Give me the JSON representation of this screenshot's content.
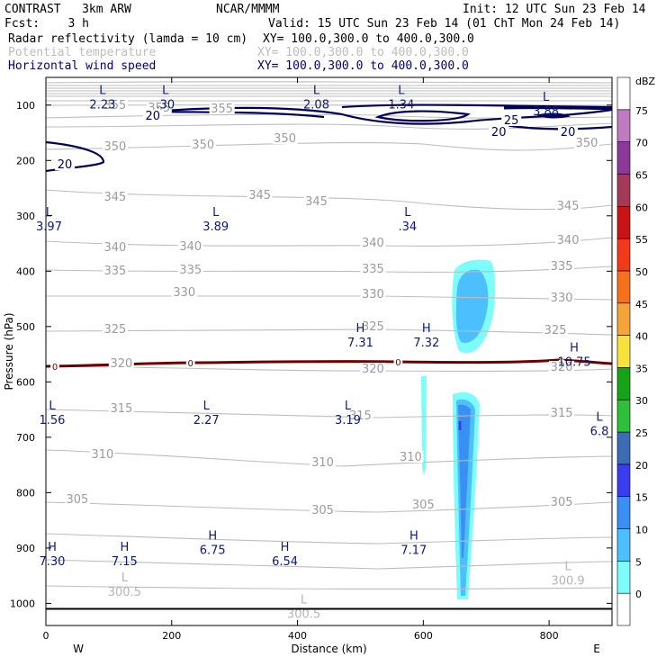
{
  "header": {
    "model": "CONTRAST   3km ARW",
    "center": "NCAR/MMMM",
    "init": "Init: 12 UTC Sun 23 Feb 14",
    "fcst": "Fcst:    3 h",
    "valid": "Valid: 15 UTC Sun 23 Feb 14 (01 ChT Mon 24 Feb 14)",
    "fields": [
      {
        "name": "Radar reflectivity (lamda = 10 cm)",
        "xy": "XY= 100.0,300.0 to 400.0,300.0"
      },
      {
        "name": "Potential temperature",
        "xy": "XY= 100.0,300.0 to 400.0,300.0"
      },
      {
        "name": "Horizontal wind speed",
        "xy": "XY= 100.0,300.0 to 400.0,300.0"
      }
    ]
  },
  "chart_data": {
    "type": "contour cross-section",
    "xlabel": "Distance (km)",
    "ylabel": "Pressure (hPa)",
    "xlim": [
      0,
      900
    ],
    "ylim": [
      1040,
      50
    ],
    "x_ticks": [
      0,
      200,
      400,
      600,
      800
    ],
    "y_ticks": [
      100,
      200,
      300,
      400,
      500,
      600,
      700,
      800,
      900,
      1000
    ],
    "x_end_labels": {
      "left": "W",
      "right": "E"
    },
    "colorbar": {
      "units": "dBZ",
      "levels": [
        0,
        5,
        10,
        15,
        20,
        25,
        30,
        35,
        40,
        45,
        50,
        55,
        60,
        65,
        70,
        75
      ],
      "colors": [
        "#ffffff",
        "#7efcfc",
        "#4cc0ff",
        "#3a8ff2",
        "#3b3bf0",
        "#3a6db3",
        "#2fbf3a",
        "#16a316",
        "#f6e23a",
        "#f5a43a",
        "#f5711b",
        "#f23a1b",
        "#c81414",
        "#a33a5a",
        "#8a3a9a",
        "#c07ac0",
        "#ffffff"
      ]
    },
    "potential_temperature_contours": [
      {
        "value": 355,
        "label_points": [
          [
            110,
            120
          ],
          [
            180,
            123
          ],
          [
            280,
            124
          ]
        ]
      },
      {
        "value": 350,
        "label_points": [
          [
            110,
            166
          ],
          [
            250,
            164
          ],
          [
            380,
            157
          ],
          [
            860,
            162
          ]
        ]
      },
      {
        "value": 345,
        "label_points": [
          [
            110,
            222
          ],
          [
            340,
            220
          ],
          [
            430,
            227
          ],
          [
            830,
            232
          ]
        ]
      },
      {
        "value": 340,
        "label_points": [
          [
            110,
            278
          ],
          [
            230,
            277
          ],
          [
            520,
            273
          ],
          [
            830,
            270
          ]
        ]
      },
      {
        "value": 335,
        "label_points": [
          [
            110,
            304
          ],
          [
            230,
            303
          ],
          [
            520,
            302
          ],
          [
            820,
            299
          ]
        ]
      },
      {
        "value": 330,
        "label_points": [
          [
            220,
            328
          ],
          [
            520,
            330
          ],
          [
            820,
            334
          ]
        ]
      },
      {
        "value": 325,
        "label_points": [
          [
            110,
            369
          ],
          [
            520,
            366
          ],
          [
            810,
            370
          ]
        ]
      },
      {
        "value": 320,
        "label_points": [
          [
            120,
            407
          ],
          [
            520,
            413
          ],
          [
            820,
            411
          ]
        ]
      },
      {
        "value": 315,
        "label_points": [
          [
            120,
            457
          ],
          [
            500,
            465
          ],
          [
            820,
            462
          ]
        ]
      },
      {
        "value": 310,
        "label_points": [
          [
            90,
            508
          ],
          [
            440,
            517
          ],
          [
            580,
            511
          ]
        ]
      },
      {
        "value": 305,
        "label_points": [
          [
            50,
            558
          ],
          [
            440,
            570
          ],
          [
            600,
            564
          ],
          [
            820,
            561
          ]
        ]
      }
    ],
    "wind_speed_contours": [
      {
        "value": 20,
        "label_points": [
          [
            170,
            132
          ],
          [
            30,
            186
          ],
          [
            720,
            150
          ],
          [
            830,
            150
          ]
        ]
      },
      {
        "value": 25,
        "label_points": [
          [
            740,
            137
          ]
        ]
      }
    ],
    "freezing_level": {
      "value": 0,
      "points_km": [
        0,
        230,
        560,
        820
      ]
    },
    "pressure_extrema": [
      {
        "type": "L",
        "value": "2.23",
        "x": 90,
        "p": 80
      },
      {
        "type": "L",
        "value": ".30",
        "x": 190,
        "p": 80
      },
      {
        "type": "L",
        "value": "2.08",
        "x": 430,
        "p": 80
      },
      {
        "type": "L",
        "value": "1.34",
        "x": 565,
        "p": 80
      },
      {
        "type": "L",
        "value": "3.88",
        "x": 795,
        "p": 92
      },
      {
        "type": "L",
        "value": "3.97",
        "x": 5,
        "p": 300
      },
      {
        "type": "L",
        "value": "3.89",
        "x": 270,
        "p": 300
      },
      {
        "type": "L",
        "value": ".34",
        "x": 575,
        "p": 300
      },
      {
        "type": "H",
        "value": "7.31",
        "x": 500,
        "p": 510
      },
      {
        "type": "H",
        "value": "7.32",
        "x": 605,
        "p": 510
      },
      {
        "type": "H",
        "value": "10.75",
        "x": 840,
        "p": 545
      },
      {
        "type": "L",
        "value": "1.56",
        "x": 10,
        "p": 650
      },
      {
        "type": "L",
        "value": "2.27",
        "x": 255,
        "p": 650
      },
      {
        "type": "L",
        "value": "3.19",
        "x": 480,
        "p": 650
      },
      {
        "type": "L",
        "value": "6.8",
        "x": 880,
        "p": 670
      },
      {
        "type": "H",
        "value": "7.30",
        "x": 10,
        "p": 905
      },
      {
        "type": "H",
        "value": "7.15",
        "x": 125,
        "p": 905
      },
      {
        "type": "H",
        "value": "6.75",
        "x": 265,
        "p": 885
      },
      {
        "type": "H",
        "value": "6.54",
        "x": 380,
        "p": 905
      },
      {
        "type": "H",
        "value": "7.17",
        "x": 585,
        "p": 885
      },
      {
        "type": "L",
        "value": "300.5",
        "x": 125,
        "p": 960,
        "field": "theta"
      },
      {
        "type": "L",
        "value": "300.5",
        "x": 410,
        "p": 1000,
        "field": "theta"
      },
      {
        "type": "L",
        "value": "300.9",
        "x": 830,
        "p": 940,
        "field": "theta"
      }
    ],
    "surface_line_p": 1010
  }
}
